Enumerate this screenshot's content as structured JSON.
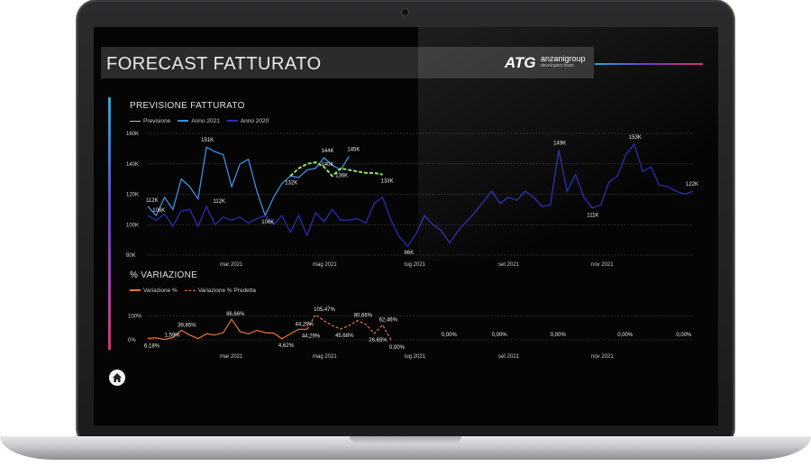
{
  "header": {
    "title": "FORECAST FATTURATO",
    "logo_mark": "ATG",
    "logo_text": "anzanigroup",
    "logo_sub": "developers team"
  },
  "top_chart": {
    "title": "PREVISIONE FATTURATO",
    "legend": [
      {
        "label": "Previsione",
        "color": "#8fe66b"
      },
      {
        "label": "Anno 2021",
        "color": "#3f8fe0"
      },
      {
        "label": "Anno 2020",
        "color": "#2a2db0"
      }
    ],
    "y_ticks": [
      "160K",
      "140K",
      "120K",
      "100K",
      "80K"
    ],
    "x_ticks": [
      "mar 2021",
      "mag 2021",
      "lug 2021",
      "set 2021",
      "nov 2021"
    ]
  },
  "bottom_chart": {
    "title": "% VARIAZIONE",
    "legend": [
      {
        "label": "Variazione %",
        "color": "#e9743d"
      },
      {
        "label": "Variazione % Predetta",
        "color": "#e9743d"
      }
    ],
    "y_ticks": [
      "100%",
      "0%"
    ],
    "x_ticks": [
      "mar 2021",
      "mag 2021",
      "lug 2021",
      "set 2021",
      "nov 2021"
    ]
  },
  "chart_data": [
    {
      "type": "line",
      "title": "PREVISIONE FATTURATO",
      "ylim": [
        80,
        160
      ],
      "y_unit": "K",
      "series": [
        {
          "name": "Anno 2021",
          "color": "#3f8fe0",
          "points": [
            [
              0,
              112
            ],
            [
              1,
              106
            ],
            [
              2,
              118
            ],
            [
              3,
              110
            ],
            [
              4,
              130
            ],
            [
              5,
              125
            ],
            [
              6,
              117
            ],
            [
              7,
              151
            ],
            [
              8,
              148
            ],
            [
              9,
              146
            ],
            [
              10,
              125
            ],
            [
              11,
              140
            ],
            [
              12,
              143
            ],
            [
              13,
              122
            ],
            [
              14,
              106
            ],
            [
              15,
              118
            ],
            [
              16,
              127
            ],
            [
              17,
              132
            ],
            [
              18,
              131
            ],
            [
              19,
              136
            ],
            [
              20,
              137
            ],
            [
              21,
              144
            ],
            [
              22,
              139
            ],
            [
              23,
              136
            ],
            [
              24,
              145
            ]
          ]
        },
        {
          "name": "Anno 2020",
          "color": "#2a2db0",
          "points": [
            [
              0,
              106
            ],
            [
              1,
              103
            ],
            [
              2,
              107
            ],
            [
              3,
              99
            ],
            [
              4,
              109
            ],
            [
              5,
              110
            ],
            [
              6,
              99
            ],
            [
              7,
              112
            ],
            [
              8,
              100
            ],
            [
              9,
              105
            ],
            [
              10,
              103
            ],
            [
              11,
              105
            ],
            [
              12,
              101
            ],
            [
              13,
              104
            ],
            [
              14,
              106
            ],
            [
              15,
              100
            ],
            [
              16,
              106
            ],
            [
              17,
              95
            ],
            [
              18,
              106
            ],
            [
              19,
              93
            ],
            [
              20,
              108
            ],
            [
              21,
              102
            ],
            [
              22,
              110
            ],
            [
              23,
              103
            ],
            [
              24,
              103
            ],
            [
              25,
              104
            ],
            [
              26,
              101
            ],
            [
              27,
              114
            ],
            [
              28,
              118
            ],
            [
              29,
              103
            ],
            [
              30,
              92
            ],
            [
              31,
              86
            ],
            [
              32,
              94
            ],
            [
              33,
              106
            ],
            [
              34,
              100
            ],
            [
              35,
              96
            ],
            [
              36,
              88
            ],
            [
              37,
              96
            ],
            [
              38,
              102
            ],
            [
              39,
              108
            ],
            [
              40,
              115
            ],
            [
              41,
              122
            ],
            [
              42,
              114
            ],
            [
              43,
              118
            ],
            [
              44,
              116
            ],
            [
              45,
              122
            ],
            [
              46,
              118
            ],
            [
              47,
              112
            ],
            [
              48,
              113
            ],
            [
              49,
              149
            ],
            [
              50,
              122
            ],
            [
              51,
              133
            ],
            [
              52,
              118
            ],
            [
              53,
              111
            ],
            [
              54,
              113
            ],
            [
              55,
              128
            ],
            [
              56,
              132
            ],
            [
              57,
              146
            ],
            [
              58,
              153
            ],
            [
              59,
              135
            ],
            [
              60,
              138
            ],
            [
              61,
              126
            ],
            [
              62,
              125
            ],
            [
              63,
              122
            ],
            [
              64,
              120
            ],
            [
              65,
              122
            ]
          ]
        },
        {
          "name": "Previsione",
          "color": "#8fe66b",
          "points": [
            [
              17,
              132
            ],
            [
              18,
              137
            ],
            [
              19,
              140
            ],
            [
              20,
              141
            ],
            [
              21,
              138
            ],
            [
              22,
              132
            ],
            [
              23,
              137
            ],
            [
              24,
              136
            ],
            [
              25,
              135
            ],
            [
              26,
              134
            ],
            [
              27,
              134
            ],
            [
              28,
              133
            ]
          ]
        }
      ],
      "data_labels": [
        "112K",
        "106K",
        "151K",
        "112K",
        "106K",
        "132K",
        "144K",
        "140K",
        "145K",
        "136K",
        "133K",
        "86K",
        "149K",
        "153K",
        "111K",
        "122K"
      ]
    },
    {
      "type": "line",
      "title": "% VARIAZIONE",
      "ylim": [
        0,
        110
      ],
      "series": [
        {
          "name": "Variazione %",
          "color": "#e9743d",
          "points": [
            [
              0,
              6.18
            ],
            [
              1,
              8
            ],
            [
              2,
              1.59
            ],
            [
              3,
              10
            ],
            [
              4,
              39.85
            ],
            [
              5,
              20
            ],
            [
              6,
              5
            ],
            [
              7,
              25
            ],
            [
              8,
              20
            ],
            [
              9,
              30
            ],
            [
              10,
              86.66
            ],
            [
              11,
              35
            ],
            [
              12,
              25
            ],
            [
              13,
              40
            ],
            [
              14,
              30
            ],
            [
              15,
              28
            ],
            [
              16,
              4.62
            ],
            [
              17,
              25
            ],
            [
              18,
              44.29
            ],
            [
              19,
              44.29
            ]
          ]
        },
        {
          "name": "Variazione % Predetta",
          "color": "#e9743d",
          "points": [
            [
              19,
              44.29
            ],
            [
              20,
              105.47
            ],
            [
              21,
              80
            ],
            [
              22,
              60
            ],
            [
              23,
              45.68
            ],
            [
              24,
              60
            ],
            [
              25,
              80.66
            ],
            [
              26,
              65
            ],
            [
              27,
              26.65
            ],
            [
              28,
              62.46
            ],
            [
              29,
              0
            ]
          ]
        }
      ],
      "data_labels": [
        "6,18%",
        "1,59%",
        "39,85%",
        "86,66%",
        "4,62%",
        "44,29%",
        "44,29%",
        "105,47%",
        "45,68%",
        "80,66%",
        "26,65%",
        "62,46%",
        "0,00%",
        "0,00%",
        "0,00%",
        "0,00%",
        "0,00%",
        "0,00%"
      ]
    }
  ]
}
